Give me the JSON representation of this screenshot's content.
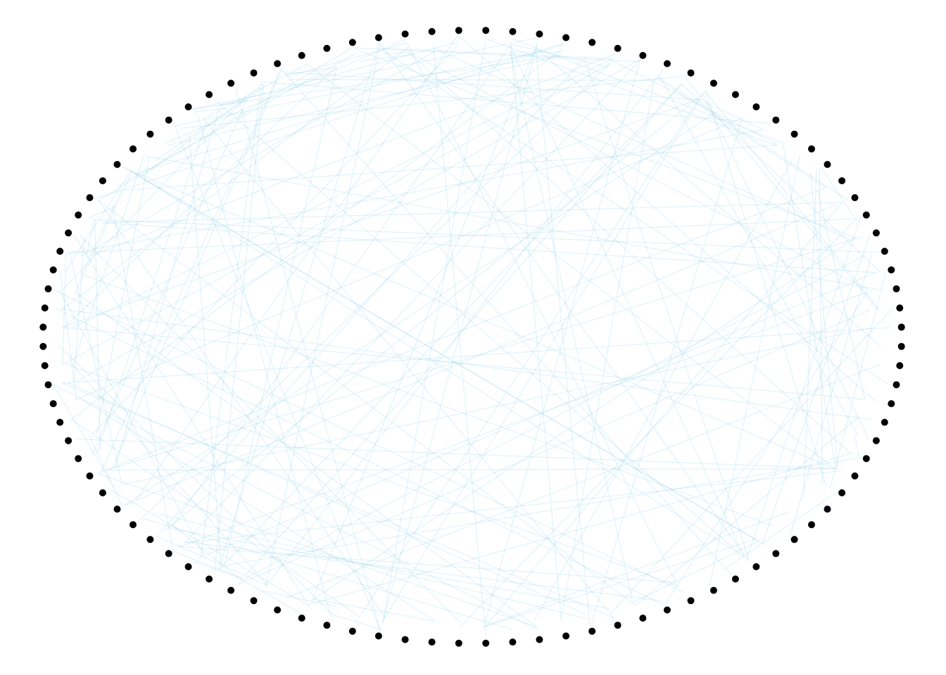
{
  "diagram": {
    "type": "circular-network-graph",
    "node_count": 100,
    "edge_count": 200,
    "node_color": "#000000",
    "edge_color": "#87ceeb",
    "edge_opacity": 0.25,
    "background": "#ffffff",
    "labels": "none"
  }
}
